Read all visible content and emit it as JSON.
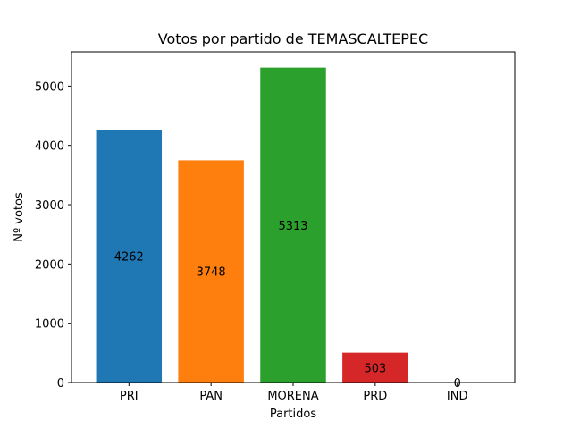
{
  "chart_data": {
    "type": "bar",
    "title": "Votos por partido de TEMASCALTEPEC",
    "xlabel": "Partidos",
    "ylabel": "Nº votos",
    "categories": [
      "PRI",
      "PAN",
      "MORENA",
      "PRD",
      "IND"
    ],
    "values": [
      4262,
      3748,
      5313,
      503,
      0
    ],
    "colors": [
      "#1f77b4",
      "#ff7f0e",
      "#2ca02c",
      "#d62728",
      "#9467bd"
    ],
    "ylim": [
      0,
      5578.65
    ],
    "yticks": [
      0,
      1000,
      2000,
      3000,
      4000,
      5000
    ],
    "grid": false,
    "legend": false
  }
}
